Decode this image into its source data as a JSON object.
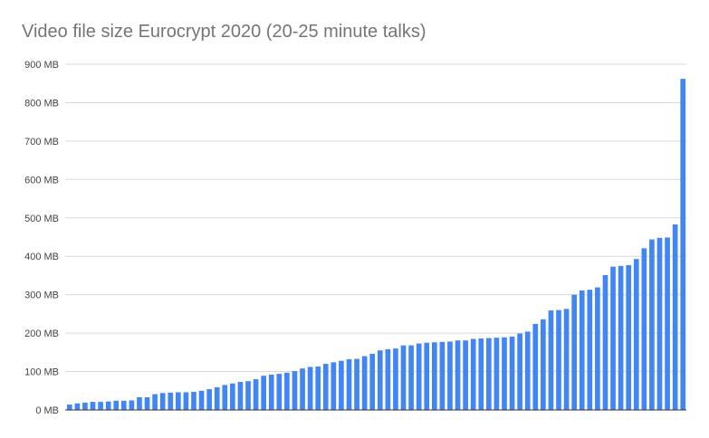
{
  "chart_data": {
    "type": "bar",
    "title": "Video file size Eurocrypt 2020 (20-25 minute talks)",
    "xlabel": "",
    "ylabel": "",
    "ylim": [
      0,
      900
    ],
    "yticks": [
      "0 MB",
      "100 MB",
      "200 MB",
      "300 MB",
      "400 MB",
      "500 MB",
      "600 MB",
      "700 MB",
      "800 MB",
      "900 MB"
    ],
    "grid": true,
    "legend": "none",
    "bar_color": "#4285f4",
    "unit": "MB",
    "values": [
      14,
      17,
      19,
      21,
      21,
      22,
      24,
      24,
      25,
      33,
      33,
      41,
      44,
      45,
      46,
      46,
      47,
      50,
      54,
      59,
      65,
      69,
      73,
      75,
      80,
      89,
      92,
      94,
      97,
      101,
      108,
      112,
      113,
      120,
      124,
      128,
      132,
      133,
      140,
      146,
      155,
      158,
      160,
      168,
      168,
      173,
      175,
      176,
      177,
      178,
      181,
      181,
      185,
      186,
      187,
      188,
      189,
      191,
      199,
      204,
      224,
      236,
      259,
      260,
      263,
      300,
      311,
      313,
      319,
      351,
      373,
      375,
      377,
      393,
      421,
      444,
      448,
      449,
      483,
      862
    ]
  }
}
